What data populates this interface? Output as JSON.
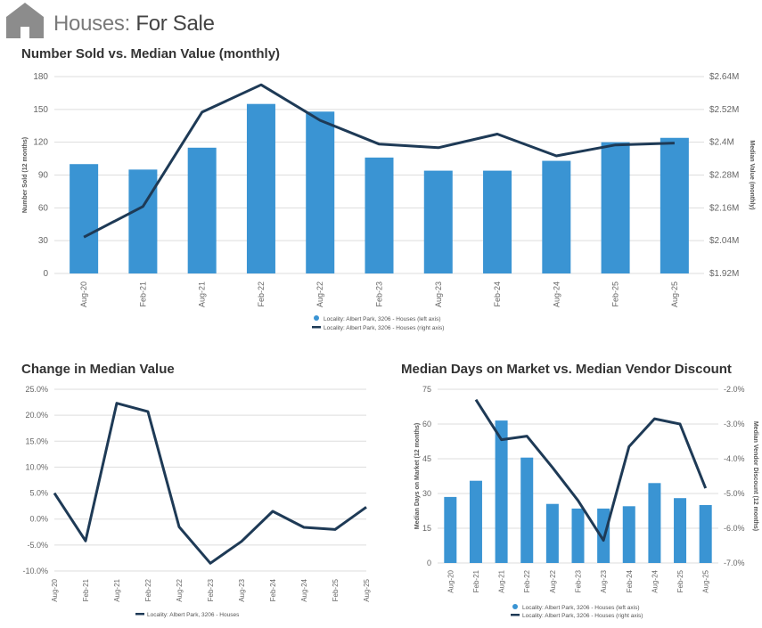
{
  "header": {
    "title_prefix": "Houses:",
    "title_suffix": "For Sale",
    "logo_icon": "house-icon"
  },
  "colors": {
    "bar": "#3a94d3",
    "line": "#1e3a56",
    "grid": "#dddddd",
    "text": "#666666"
  },
  "chart_data": [
    {
      "id": "sold_vs_value",
      "type": "bar+line",
      "title": "Number Sold vs. Median Value (monthly)",
      "ylabel": "Number Sold (12 months)",
      "y2label": "Median Value (monthly)",
      "categories": [
        "Aug-20",
        "Feb-21",
        "Aug-21",
        "Feb-22",
        "Aug-22",
        "Feb-23",
        "Aug-23",
        "Feb-24",
        "Aug-24",
        "Feb-25",
        "Aug-25"
      ],
      "ylim": [
        0,
        180
      ],
      "yticks": [
        "0",
        "30",
        "60",
        "90",
        "120",
        "150",
        "180"
      ],
      "y2lim": [
        1.92,
        2.64
      ],
      "y2ticks": [
        "$1.92M",
        "$2.04M",
        "$2.16M",
        "$2.28M",
        "$2.4M",
        "$2.52M",
        "$2.64M"
      ],
      "series": [
        {
          "name": "Locality: Albert Park, 3206 - Houses (left axis)",
          "type": "bar",
          "axis": "left",
          "values": [
            100,
            95,
            115,
            155,
            148,
            106,
            94,
            94,
            103,
            120,
            124
          ]
        },
        {
          "name": "Locality: Albert Park, 3206 - Houses (right axis)",
          "type": "line",
          "axis": "right",
          "values": [
            2.053,
            2.165,
            2.51,
            2.61,
            2.48,
            2.393,
            2.38,
            2.43,
            2.35,
            2.39,
            2.397
          ]
        }
      ]
    },
    {
      "id": "change_median",
      "type": "line",
      "title": "Change in Median Value",
      "categories": [
        "Aug-20",
        "Feb-21",
        "Aug-21",
        "Feb-22",
        "Aug-22",
        "Feb-23",
        "Aug-23",
        "Feb-24",
        "Aug-24",
        "Feb-25",
        "Aug-25"
      ],
      "ylim": [
        -10,
        25
      ],
      "yticks": [
        "-10.0%",
        "-5.0%",
        "0.0%",
        "5.0%",
        "10.0%",
        "15.0%",
        "20.0%",
        "25.0%"
      ],
      "series": [
        {
          "name": "Locality: Albert Park, 3206 - Houses",
          "values": [
            5.0,
            -4.2,
            22.3,
            20.7,
            -1.5,
            -8.5,
            -4.3,
            1.5,
            -1.6,
            -2.0,
            2.3
          ]
        }
      ]
    },
    {
      "id": "days_vs_discount",
      "type": "bar+line",
      "title": "Median Days on Market vs. Median Vendor Discount",
      "ylabel": "Median Days on Market (12 months)",
      "y2label": "Median Vendor Discount (12 months)",
      "categories": [
        "Aug-20",
        "Feb-21",
        "Aug-21",
        "Feb-22",
        "Aug-22",
        "Feb-23",
        "Aug-23",
        "Feb-24",
        "Aug-24",
        "Feb-25",
        "Aug-25"
      ],
      "ylim": [
        0,
        75
      ],
      "yticks": [
        "0",
        "15",
        "30",
        "45",
        "60",
        "75"
      ],
      "y2lim": [
        -7,
        -2
      ],
      "y2ticks": [
        "-7.0%",
        "-6.0%",
        "-5.0%",
        "-4.0%",
        "-3.0%",
        "-2.0%"
      ],
      "series": [
        {
          "name": "Locality: Albert Park, 3206 - Houses (left axis)",
          "type": "bar",
          "axis": "left",
          "values": [
            28.5,
            35.5,
            61.5,
            45.5,
            25.5,
            23.5,
            23.5,
            24.5,
            34.5,
            28,
            25
          ]
        },
        {
          "name": "Locality: Albert Park, 3206 - Houses (right axis)",
          "type": "line",
          "axis": "right",
          "values": [
            null,
            -2.3,
            -3.45,
            -3.35,
            -4.25,
            -5.2,
            -6.35,
            -3.65,
            -2.85,
            -3.0,
            -4.85
          ]
        }
      ]
    }
  ]
}
